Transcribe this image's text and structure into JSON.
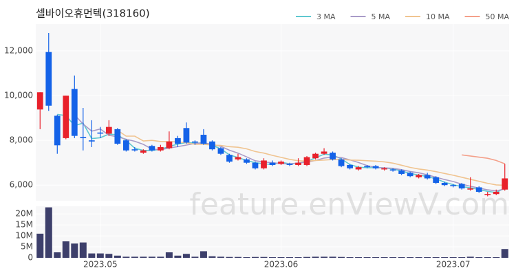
{
  "chart_data": [
    {
      "type": "candlestick",
      "title": "셀바이오휴먼텍(318160)",
      "watermark": "feature.enViewV.com",
      "up_color": "#e8212b",
      "down_color": "#1462e8",
      "ylim": [
        5300,
        13200
      ],
      "yticks": [
        {
          "value": 6000,
          "label": "6,000"
        },
        {
          "value": 8000,
          "label": "8,000"
        },
        {
          "value": 10000,
          "label": "10,000"
        },
        {
          "value": 12000,
          "label": "12,000"
        }
      ],
      "grid": true,
      "open": [
        9380,
        11950,
        9100,
        8100,
        10300,
        8150,
        8000,
        8350,
        8300,
        8500,
        8000,
        7600,
        7450,
        7750,
        7550,
        7650,
        8100,
        8550,
        7950,
        8250,
        7950,
        7650,
        7350,
        7150,
        7150,
        7000,
        6750,
        7000,
        6950,
        6950,
        6900,
        6900,
        7200,
        7400,
        7450,
        7150,
        6900,
        6700,
        6850,
        6850,
        6700,
        6700,
        6650,
        6550,
        6350,
        6450,
        6350,
        6100,
        6000,
        6050,
        5800,
        5900,
        5550,
        5600,
        5800
      ],
      "high": [
        10150,
        12800,
        9150,
        10000,
        10900,
        9450,
        8900,
        8600,
        8900,
        8550,
        8050,
        7700,
        7600,
        7800,
        7800,
        8400,
        8200,
        8800,
        8000,
        8500,
        8000,
        7700,
        7400,
        7400,
        7200,
        7050,
        7200,
        7100,
        7100,
        7000,
        7200,
        7300,
        7450,
        7650,
        7500,
        7200,
        6950,
        6850,
        6900,
        6900,
        6800,
        6750,
        6700,
        6600,
        6500,
        6550,
        6400,
        6150,
        6050,
        6100,
        6350,
        5950,
        5700,
        5800,
        6950
      ],
      "low": [
        8500,
        9320,
        7400,
        8050,
        8100,
        7550,
        7700,
        8100,
        8200,
        7800,
        7500,
        7500,
        7400,
        7500,
        7500,
        7600,
        7700,
        7850,
        7800,
        7800,
        7550,
        7350,
        7000,
        7100,
        6950,
        6700,
        6700,
        6850,
        6900,
        6850,
        6850,
        6850,
        7150,
        7350,
        7100,
        6800,
        6700,
        6650,
        6750,
        6700,
        6650,
        6600,
        6450,
        6350,
        6300,
        6250,
        6050,
        5950,
        5900,
        5800,
        5750,
        5650,
        5500,
        5550,
        5750
      ],
      "close": [
        10150,
        9550,
        7780,
        10000,
        8200,
        8100,
        7950,
        8300,
        8600,
        7850,
        7550,
        7550,
        7550,
        7550,
        7700,
        7950,
        7850,
        7900,
        7900,
        7850,
        7600,
        7400,
        7050,
        7250,
        7000,
        6750,
        7100,
        6900,
        7050,
        6900,
        7000,
        7250,
        7400,
        7500,
        7150,
        6850,
        6750,
        6800,
        6800,
        6750,
        6750,
        6650,
        6500,
        6400,
        6450,
        6300,
        6100,
        6000,
        5950,
        5850,
        5850,
        5700,
        5600,
        5700,
        6300
      ],
      "series": [
        {
          "name": "3 MA",
          "color": "#5fc8d0",
          "values": [
            null,
            null,
            9160,
            9110,
            8660,
            8770,
            8080,
            8120,
            8280,
            8250,
            8000,
            7650,
            7550,
            7550,
            7600,
            7730,
            7830,
            7900,
            7880,
            7880,
            7780,
            7620,
            7350,
            7230,
            7100,
            7000,
            6950,
            6920,
            7020,
            6950,
            6980,
            7050,
            7220,
            7380,
            7350,
            7170,
            6920,
            6800,
            6780,
            6780,
            6770,
            6720,
            6630,
            6520,
            6450,
            6380,
            6280,
            6130,
            6020,
            5930,
            5880,
            5800,
            5720,
            5670,
            5870
          ]
        },
        {
          "name": "5 MA",
          "color": "#a99bc8",
          "values": [
            null,
            null,
            null,
            null,
            9140,
            8730,
            8410,
            8510,
            8230,
            8160,
            8050,
            7960,
            7820,
            7610,
            7580,
            7660,
            7720,
            7790,
            7860,
            7890,
            7820,
            7730,
            7560,
            7430,
            7260,
            7090,
            7030,
            7000,
            6960,
            6940,
            6990,
            7020,
            7100,
            7210,
            7260,
            7230,
            7130,
            7010,
            6870,
            6790,
            6770,
            6750,
            6690,
            6610,
            6550,
            6460,
            6350,
            6250,
            6160,
            6040,
            5950,
            5870,
            5790,
            5740,
            5830
          ]
        },
        {
          "name": "10 MA",
          "color": "#f0c490",
          "values": [
            null,
            null,
            null,
            null,
            null,
            null,
            null,
            null,
            null,
            8450,
            8190,
            8190,
            7970,
            8000,
            7950,
            7940,
            7930,
            7890,
            7820,
            7820,
            7790,
            7770,
            7720,
            7690,
            7620,
            7500,
            7430,
            7330,
            7240,
            7150,
            7090,
            7070,
            7100,
            7120,
            7140,
            7150,
            7120,
            7110,
            7090,
            7070,
            7040,
            6980,
            6890,
            6790,
            6720,
            6670,
            6600,
            6520,
            6440,
            6350,
            6260,
            6170,
            6080,
            6010,
            5990
          ]
        },
        {
          "name": "50 MA",
          "color": "#f4a08a",
          "values": [
            null,
            null,
            null,
            null,
            null,
            null,
            null,
            null,
            null,
            null,
            null,
            null,
            null,
            null,
            null,
            null,
            null,
            null,
            null,
            null,
            null,
            null,
            null,
            null,
            null,
            null,
            null,
            null,
            null,
            null,
            null,
            null,
            null,
            null,
            null,
            null,
            null,
            null,
            null,
            null,
            null,
            null,
            null,
            null,
            null,
            null,
            null,
            null,
            null,
            7350,
            7300,
            7250,
            7200,
            7100,
            6950
          ]
        }
      ]
    },
    {
      "type": "bar",
      "color": "#3d3f6b",
      "categories": [
        null,
        null,
        null,
        null,
        null,
        null,
        null,
        "2023.05",
        null,
        null,
        null,
        null,
        null,
        null,
        null,
        null,
        null,
        null,
        null,
        null,
        null,
        null,
        null,
        null,
        null,
        null,
        null,
        null,
        "2023.06",
        null,
        null,
        null,
        null,
        null,
        null,
        null,
        null,
        null,
        null,
        null,
        null,
        null,
        null,
        null,
        null,
        null,
        null,
        null,
        "2023.07",
        null,
        null,
        null,
        null,
        null,
        null
      ],
      "values": [
        11000000,
        23000000,
        2500000,
        7500000,
        6500000,
        7000000,
        2000000,
        2000000,
        1800000,
        1000000,
        500000,
        500000,
        500000,
        500000,
        500000,
        2500000,
        1000000,
        1800000,
        500000,
        3000000,
        700000,
        500000,
        400000,
        400000,
        300000,
        400000,
        400000,
        300000,
        300000,
        300000,
        300000,
        400000,
        500000,
        500000,
        500000,
        400000,
        300000,
        300000,
        300000,
        300000,
        300000,
        300000,
        300000,
        300000,
        300000,
        300000,
        300000,
        300000,
        300000,
        300000,
        500000,
        300000,
        300000,
        300000,
        4000000
      ],
      "ylim": [
        0,
        23500000
      ],
      "yticks": [
        0,
        {
          "value": 5000000,
          "label": "5M"
        },
        {
          "value": 10000000,
          "label": "10M"
        },
        {
          "value": 15000000,
          "label": "15M"
        },
        {
          "value": 20000000,
          "label": "20M"
        }
      ],
      "grid": true
    }
  ]
}
